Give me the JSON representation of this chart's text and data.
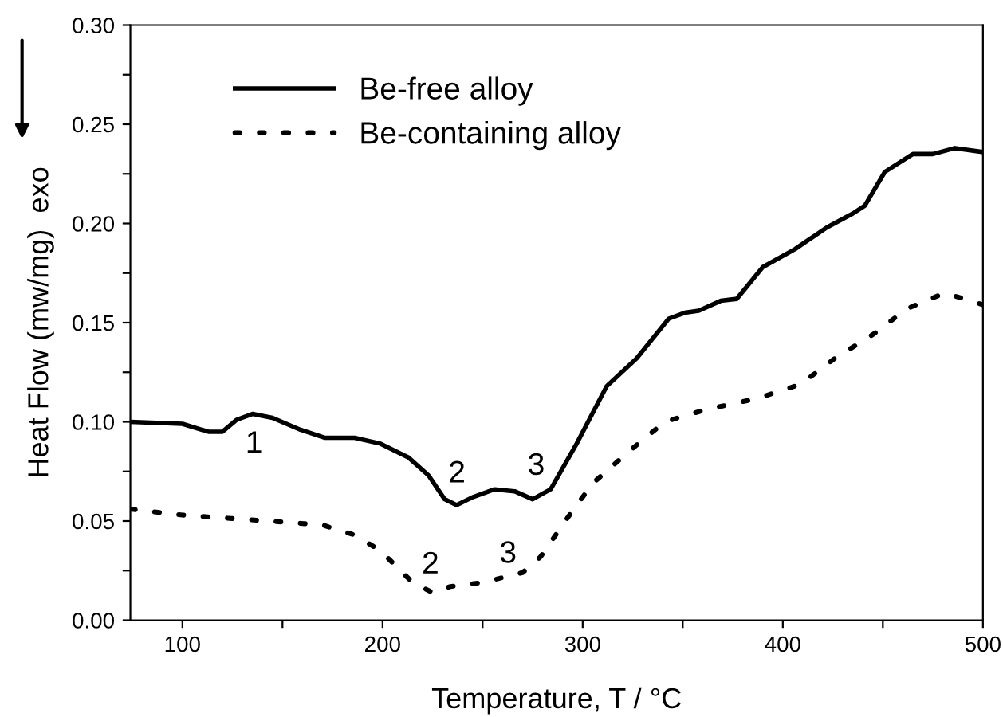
{
  "chart_data": {
    "type": "line",
    "xlabel": "Temperature, T / °C",
    "ylabel": "Heat Flow (mw/mg)  exo",
    "xlim": [
      74,
      500
    ],
    "xticks": [
      100,
      {
        "value": 150,
        "label": null
      },
      200,
      {
        "value": 250,
        "label": null
      },
      300,
      {
        "value": 350,
        "label": null
      },
      400,
      {
        "value": 450,
        "label": null
      },
      500
    ],
    "ylim": [
      0,
      0.3
    ],
    "yticks": [
      {
        "value": 0,
        "label": "0.00"
      },
      {
        "value": 0.025,
        "label": null
      },
      {
        "value": 0.05,
        "label": "0.05"
      },
      {
        "value": 0.075,
        "label": null
      },
      {
        "value": 0.1,
        "label": "0.10"
      },
      {
        "value": 0.125,
        "label": null
      },
      {
        "value": 0.15,
        "label": "0.15"
      },
      {
        "value": 0.175,
        "label": null
      },
      {
        "value": 0.2,
        "label": "0.20"
      },
      {
        "value": 0.225,
        "label": null
      },
      {
        "value": 0.25,
        "label": "0.25"
      },
      {
        "value": 0.275,
        "label": null
      },
      {
        "value": 0.3,
        "label": "0.30"
      }
    ],
    "grid": false,
    "legend": "top left",
    "marker": "none",
    "series": [
      {
        "name": "Be-free alloy",
        "color": "#000000",
        "line_style": "solid",
        "x": [
          74,
          100,
          113,
          120,
          127,
          135,
          145,
          159,
          171,
          186,
          199,
          213,
          223,
          231,
          237,
          245,
          256,
          266,
          275,
          284,
          297,
          312,
          327,
          343,
          351,
          358,
          369,
          377,
          390,
          406,
          422,
          435,
          441,
          451,
          465,
          475,
          486,
          500
        ],
        "values": [
          0.1,
          0.099,
          0.095,
          0.095,
          0.101,
          0.104,
          0.102,
          0.096,
          0.092,
          0.092,
          0.089,
          0.082,
          0.073,
          0.061,
          0.058,
          0.062,
          0.066,
          0.065,
          0.061,
          0.066,
          0.089,
          0.118,
          0.132,
          0.152,
          0.155,
          0.156,
          0.161,
          0.162,
          0.178,
          0.187,
          0.198,
          0.205,
          0.209,
          0.226,
          0.235,
          0.235,
          0.238,
          0.236
        ]
      },
      {
        "name": "Be-containing alloy",
        "color": "#000000",
        "line_style": "dotted",
        "x": [
          74,
          100,
          143,
          170,
          186,
          199,
          215,
          225,
          234,
          250,
          270,
          279,
          292,
          305,
          323,
          341,
          361,
          388,
          409,
          426,
          445,
          462,
          481,
          500
        ],
        "values": [
          0.056,
          0.053,
          0.05,
          0.048,
          0.043,
          0.035,
          0.019,
          0.014,
          0.017,
          0.019,
          0.024,
          0.032,
          0.051,
          0.069,
          0.085,
          0.1,
          0.106,
          0.112,
          0.119,
          0.132,
          0.144,
          0.157,
          0.165,
          0.159
        ]
      }
    ],
    "annotations": [
      "1",
      "2",
      "3",
      "2",
      "3"
    ]
  }
}
